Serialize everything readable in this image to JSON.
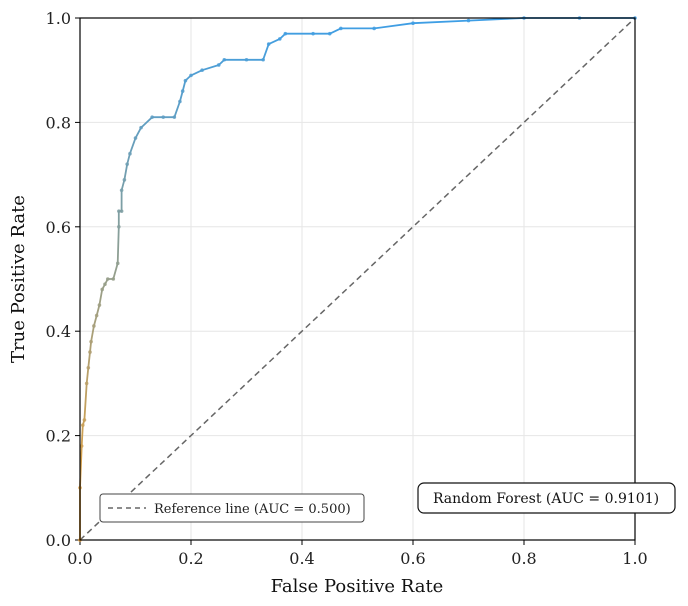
{
  "chart_data": {
    "type": "line",
    "title": "",
    "xlabel": "False Positive Rate",
    "ylabel": "True Positive Rate",
    "xlim": [
      0.0,
      1.0
    ],
    "ylim": [
      0.0,
      1.0
    ],
    "xticks": [
      "0.0",
      "0.2",
      "0.4",
      "0.6",
      "0.8",
      "1.0"
    ],
    "yticks": [
      "0.0",
      "0.2",
      "0.4",
      "0.6",
      "0.8",
      "1.0"
    ],
    "grid": true,
    "series": [
      {
        "name": "Random Forest",
        "style": "solid-with-markers",
        "color_start": "#f0a030",
        "color_end": "#3d9ee6",
        "x": [
          0.0,
          0.0,
          0.003,
          0.005,
          0.008,
          0.012,
          0.015,
          0.018,
          0.02,
          0.025,
          0.03,
          0.035,
          0.04,
          0.045,
          0.05,
          0.06,
          0.068,
          0.07,
          0.07,
          0.075,
          0.075,
          0.08,
          0.085,
          0.09,
          0.1,
          0.11,
          0.13,
          0.15,
          0.17,
          0.18,
          0.185,
          0.19,
          0.2,
          0.22,
          0.25,
          0.26,
          0.3,
          0.33,
          0.34,
          0.36,
          0.37,
          0.42,
          0.45,
          0.47,
          0.53,
          0.6,
          0.7,
          0.8,
          0.9,
          1.0
        ],
        "y": [
          0.0,
          0.1,
          0.18,
          0.22,
          0.23,
          0.3,
          0.33,
          0.36,
          0.38,
          0.41,
          0.43,
          0.45,
          0.48,
          0.49,
          0.5,
          0.5,
          0.53,
          0.6,
          0.63,
          0.63,
          0.67,
          0.69,
          0.72,
          0.74,
          0.77,
          0.79,
          0.81,
          0.81,
          0.81,
          0.84,
          0.86,
          0.88,
          0.89,
          0.9,
          0.91,
          0.92,
          0.92,
          0.92,
          0.95,
          0.96,
          0.97,
          0.97,
          0.97,
          0.98,
          0.98,
          0.99,
          0.995,
          1.0,
          1.0,
          1.0
        ]
      },
      {
        "name": "Reference line",
        "style": "dashed",
        "color": "#666666",
        "x": [
          0.0,
          1.0
        ],
        "y": [
          0.0,
          1.0
        ]
      }
    ],
    "legend": {
      "placement": "lower-left",
      "entries": [
        "Reference line (AUC = 0.500)"
      ]
    },
    "annotation": {
      "placement": "lower-right",
      "text": "Random Forest (AUC = 0.9101)"
    }
  }
}
